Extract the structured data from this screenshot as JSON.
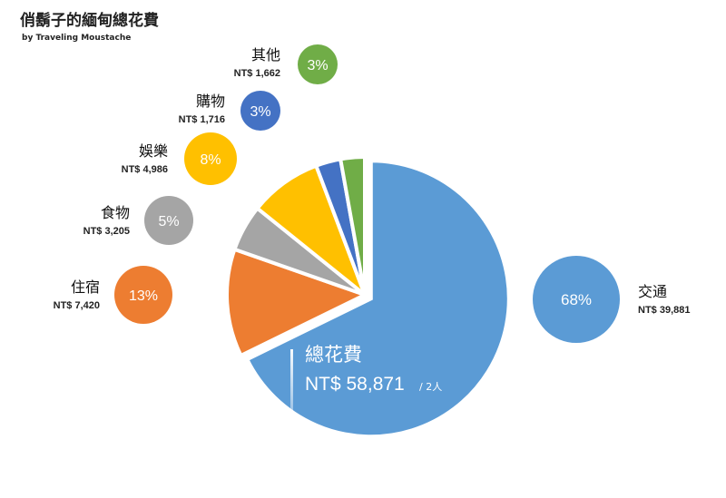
{
  "header": {
    "title": "俏鬍子的緬甸總花費",
    "subtitle": "by Traveling Moustache"
  },
  "center_label": {
    "title": "總花費",
    "total": "NT$ 58,871",
    "per": "/ 2人"
  },
  "colors": {
    "交通": "#5b9bd5",
    "住宿": "#ed7d31",
    "食物": "#a5a5a5",
    "娛樂": "#ffc000",
    "購物": "#4472c4",
    "其他": "#70ad47"
  },
  "chart_data": {
    "type": "pie",
    "series": [
      {
        "name": "交通",
        "value": 39881,
        "amount_label": "NT$ 39,881",
        "percent_label": "68%"
      },
      {
        "name": "住宿",
        "value": 7420,
        "amount_label": "NT$ 7,420",
        "percent_label": "13%"
      },
      {
        "name": "食物",
        "value": 3205,
        "amount_label": "NT$ 3,205",
        "percent_label": "5%"
      },
      {
        "name": "娛樂",
        "value": 4986,
        "amount_label": "NT$ 4,986",
        "percent_label": "8%"
      },
      {
        "name": "購物",
        "value": 1716,
        "amount_label": "NT$ 1,716",
        "percent_label": "3%"
      },
      {
        "name": "其他",
        "value": 1662,
        "amount_label": "NT$ 1,662",
        "percent_label": "3%"
      }
    ],
    "start_angle_deg": 0,
    "direction": "clockwise",
    "exploded_slices": [
      "交通"
    ]
  }
}
